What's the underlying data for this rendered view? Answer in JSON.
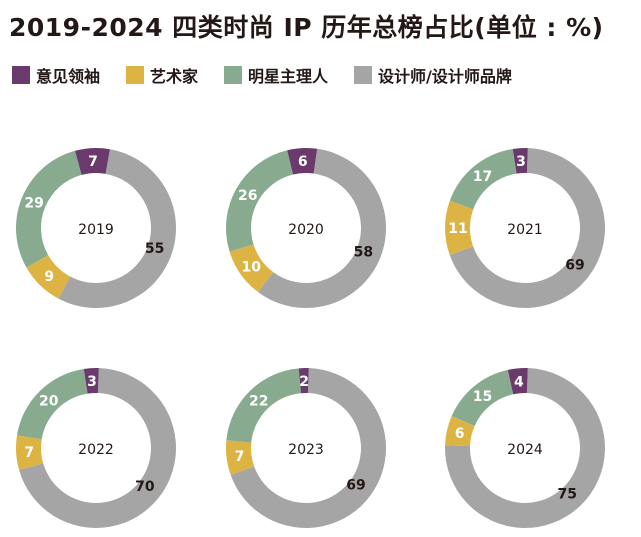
{
  "chart_data": {
    "type": "donut",
    "title": "2019-2024 四类时尚 IP 历年总榜占比(单位 : %)",
    "legend_position": "top-left",
    "series": [
      {
        "name": "意见领袖",
        "color": "#6a3a6d"
      },
      {
        "name": "艺术家",
        "color": "#ddb444"
      },
      {
        "name": "明星主理人",
        "color": "#88ab90"
      },
      {
        "name": "设计师/设计师品牌",
        "color": "#a5a5a5"
      }
    ],
    "charts": [
      {
        "year": "2019",
        "values": [
          7,
          9,
          29,
          55
        ]
      },
      {
        "year": "2020",
        "values": [
          6,
          10,
          26,
          58
        ]
      },
      {
        "year": "2021",
        "values": [
          3,
          11,
          17,
          69
        ]
      },
      {
        "year": "2022",
        "values": [
          3,
          7,
          20,
          70
        ]
      },
      {
        "year": "2023",
        "values": [
          2,
          7,
          22,
          69
        ]
      },
      {
        "year": "2024",
        "values": [
          4,
          6,
          15,
          75
        ]
      }
    ]
  }
}
